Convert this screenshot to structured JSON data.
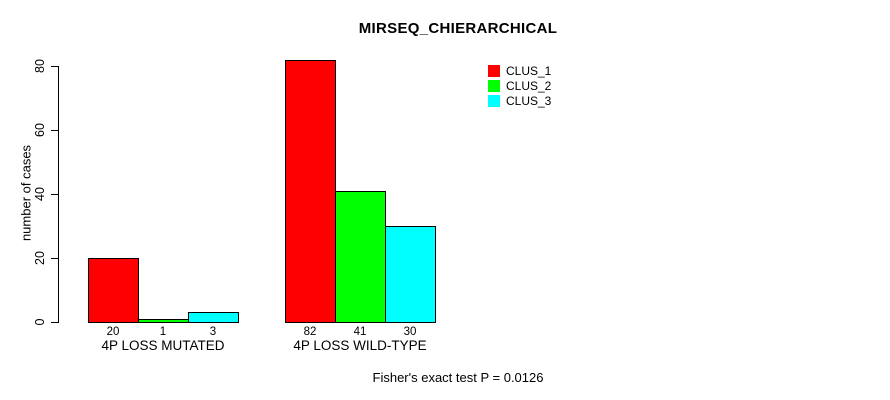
{
  "chart": {
    "title": "MIRSEQ_CHIERARCHICAL",
    "ylabel": "number of cases",
    "footer": "Fisher's exact test P = 0.0126"
  },
  "chart_data": {
    "type": "bar",
    "title": "MIRSEQ_CHIERARCHICAL",
    "xlabel": "",
    "ylabel": "number of cases",
    "ylim": [
      0,
      80
    ],
    "yticks": [
      0,
      20,
      40,
      60,
      80
    ],
    "categories": [
      "4P LOSS MUTATED",
      "4P LOSS WILD-TYPE"
    ],
    "series": [
      {
        "name": "CLUS_1",
        "color": "#ff0000",
        "values": [
          20,
          82
        ]
      },
      {
        "name": "CLUS_2",
        "color": "#00ff00",
        "values": [
          1,
          41
        ]
      },
      {
        "name": "CLUS_3",
        "color": "#00ffff",
        "values": [
          3,
          30
        ]
      }
    ],
    "bar_value_labels": [
      [
        "20",
        "1",
        "3"
      ],
      [
        "82",
        "41",
        "30"
      ]
    ],
    "legend_entries": [
      "CLUS_1",
      "CLUS_2",
      "CLUS_3"
    ],
    "legend_position": "top-right",
    "grid": false,
    "bar_border_color": "#000000",
    "background_color": "#ffffff",
    "annotation": "Fisher's exact test P = 0.0126"
  }
}
